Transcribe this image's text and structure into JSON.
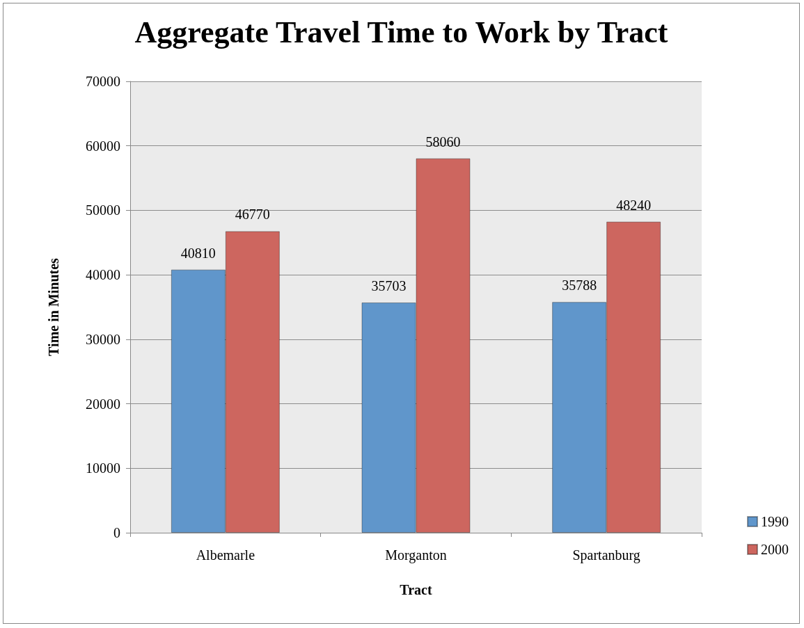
{
  "chart_data": {
    "type": "bar",
    "title": "Aggregate Travel Time to Work by Tract",
    "xlabel": "Tract",
    "ylabel": "Time in Minutes",
    "categories": [
      "Albemarle",
      "Morganton",
      "Spartanburg"
    ],
    "series": [
      {
        "name": "1990",
        "color": "#6096cb",
        "values": [
          40810,
          35703,
          35788
        ]
      },
      {
        "name": "2000",
        "color": "#cd665f",
        "values": [
          46770,
          58060,
          48240
        ]
      }
    ],
    "ylim": [
      0,
      70000
    ],
    "yticks": [
      0,
      10000,
      20000,
      30000,
      40000,
      50000,
      60000,
      70000
    ],
    "grid": "y",
    "legend": "right",
    "data_labels": true
  }
}
